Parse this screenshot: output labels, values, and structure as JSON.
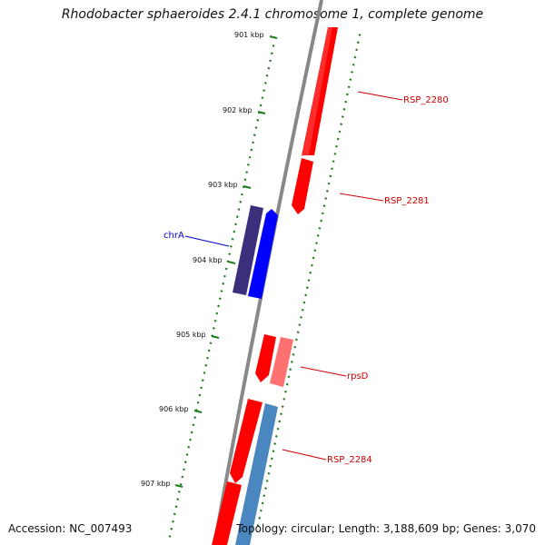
{
  "title": "Rhodobacter sphaeroides 2.4.1 chromosome 1, complete genome",
  "footer": {
    "accession": "Accession: NC_007493",
    "summary": "Topology: circular; Length: 3,188,609 bp; Genes: 3,070"
  },
  "ticks": [
    {
      "label": "901 kbp"
    },
    {
      "label": "902 kbp"
    },
    {
      "label": "903 kbp"
    },
    {
      "label": "904 kbp"
    },
    {
      "label": "905 kbp"
    },
    {
      "label": "906 kbp"
    },
    {
      "label": "907 kbp"
    }
  ],
  "genes": [
    {
      "name": "RSP_2280",
      "color": "#ff0000",
      "label_color": "#cc0000"
    },
    {
      "name": "RSP_2281",
      "color": "#ff0000",
      "label_color": "#cc0000"
    },
    {
      "name": "chrA",
      "color": "#0000ff",
      "label_color": "#0000cc"
    },
    {
      "name": "rpsD",
      "color": "#ff7070",
      "label_color": "#cc0000"
    },
    {
      "name": "RSP_2284",
      "color": "#4a86c0",
      "label_color": "#cc0000"
    }
  ],
  "colors": {
    "backbone": "#888888",
    "tick": "#1a7a1a",
    "chrA_shadow": "#3a2f7a"
  }
}
